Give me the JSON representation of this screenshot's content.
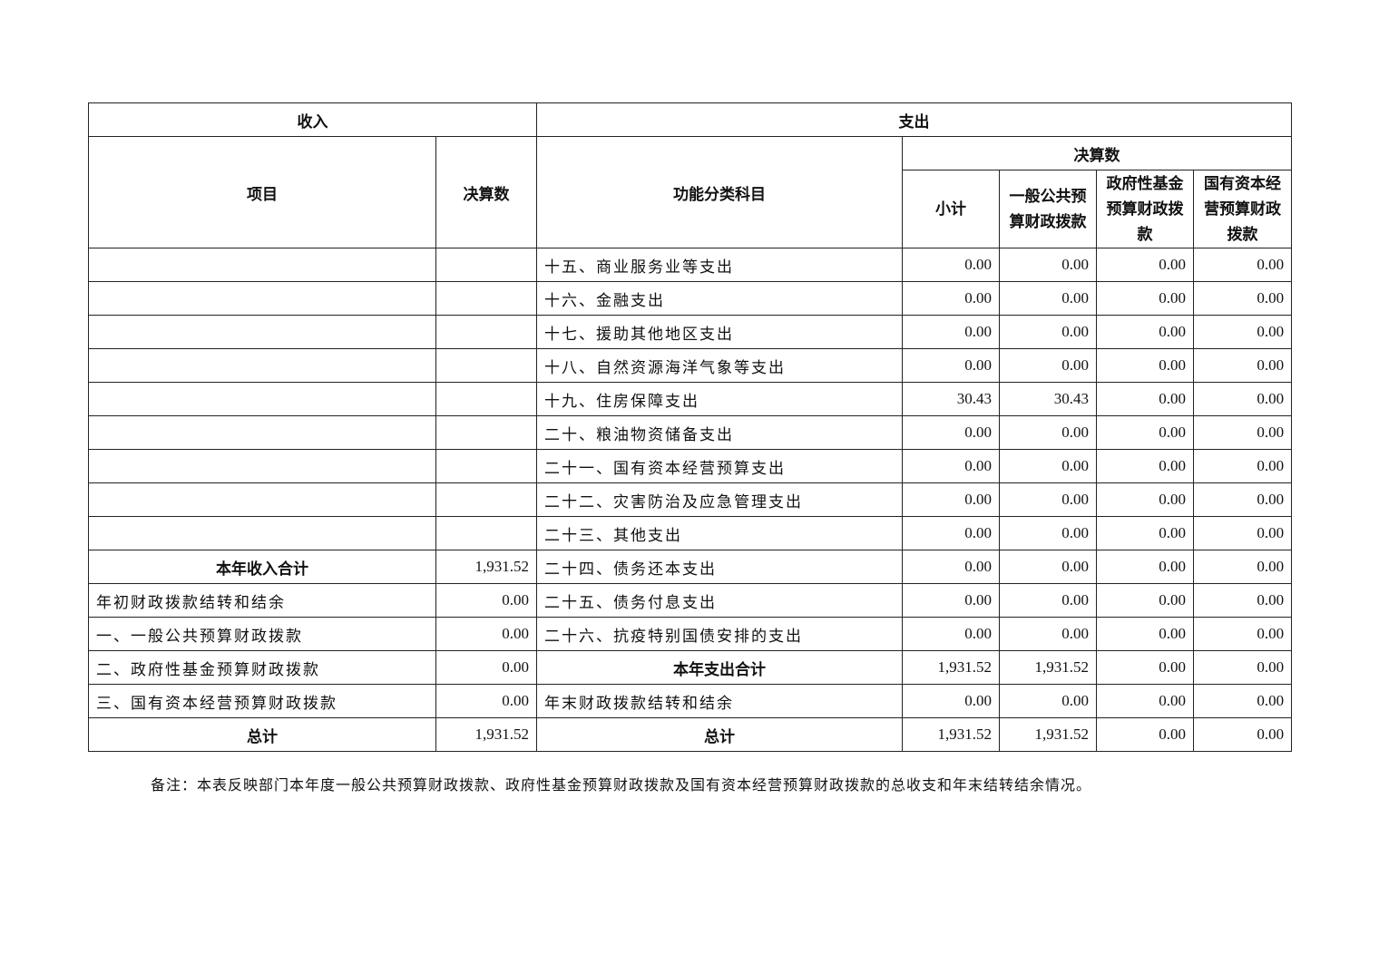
{
  "header": {
    "income": "收入",
    "expense": "支出",
    "item": "项目",
    "income_amount": "决算数",
    "function_category": "功能分类科目",
    "expense_amount": "决算数",
    "subtotal": "小计",
    "general_public": "一般公共预算财政拨款",
    "gov_fund": "政府性基金预算财政拨款",
    "state_capital": "国有资本经营预算财政拨款"
  },
  "rows": [
    {
      "in_item": "",
      "in_amt": "",
      "out_item": "十五、商业服务业等支出",
      "v": [
        "0.00",
        "0.00",
        "0.00",
        "0.00"
      ]
    },
    {
      "in_item": "",
      "in_amt": "",
      "out_item": "十六、金融支出",
      "v": [
        "0.00",
        "0.00",
        "0.00",
        "0.00"
      ]
    },
    {
      "in_item": "",
      "in_amt": "",
      "out_item": "十七、援助其他地区支出",
      "v": [
        "0.00",
        "0.00",
        "0.00",
        "0.00"
      ]
    },
    {
      "in_item": "",
      "in_amt": "",
      "out_item": "十八、自然资源海洋气象等支出",
      "v": [
        "0.00",
        "0.00",
        "0.00",
        "0.00"
      ]
    },
    {
      "in_item": "",
      "in_amt": "",
      "out_item": "十九、住房保障支出",
      "v": [
        "30.43",
        "30.43",
        "0.00",
        "0.00"
      ]
    },
    {
      "in_item": "",
      "in_amt": "",
      "out_item": "二十、粮油物资储备支出",
      "v": [
        "0.00",
        "0.00",
        "0.00",
        "0.00"
      ]
    },
    {
      "in_item": "",
      "in_amt": "",
      "out_item": "二十一、国有资本经营预算支出",
      "v": [
        "0.00",
        "0.00",
        "0.00",
        "0.00"
      ]
    },
    {
      "in_item": "",
      "in_amt": "",
      "out_item": "二十二、灾害防治及应急管理支出",
      "v": [
        "0.00",
        "0.00",
        "0.00",
        "0.00"
      ]
    },
    {
      "in_item": "",
      "in_amt": "",
      "out_item": "二十三、其他支出",
      "v": [
        "0.00",
        "0.00",
        "0.00",
        "0.00"
      ]
    },
    {
      "in_item": "本年收入合计",
      "in_bold": true,
      "in_amt": "1,931.52",
      "out_item": "二十四、债务还本支出",
      "v": [
        "0.00",
        "0.00",
        "0.00",
        "0.00"
      ]
    },
    {
      "in_item": "年初财政拨款结转和结余",
      "in_amt": "0.00",
      "out_item": "二十五、债务付息支出",
      "v": [
        "0.00",
        "0.00",
        "0.00",
        "0.00"
      ]
    },
    {
      "in_item": "一、一般公共预算财政拨款",
      "in_amt": "0.00",
      "out_item": "二十六、抗疫特别国债安排的支出",
      "v": [
        "0.00",
        "0.00",
        "0.00",
        "0.00"
      ]
    },
    {
      "in_item": "二、政府性基金预算财政拨款",
      "in_amt": "0.00",
      "out_item": "本年支出合计",
      "out_bold": true,
      "v": [
        "1,931.52",
        "1,931.52",
        "0.00",
        "0.00"
      ]
    },
    {
      "in_item": "三、国有资本经营预算财政拨款",
      "in_amt": "0.00",
      "out_item": "年末财政拨款结转和结余",
      "v": [
        "0.00",
        "0.00",
        "0.00",
        "0.00"
      ]
    },
    {
      "in_item": "总计",
      "in_bold": true,
      "in_amt": "1,931.52",
      "out_item": "总计",
      "out_bold": true,
      "v": [
        "1,931.52",
        "1,931.52",
        "0.00",
        "0.00"
      ]
    }
  ],
  "note": "备注：本表反映部门本年度一般公共预算财政拨款、政府性基金预算财政拨款及国有资本经营预算财政拨款的总收支和年末结转结余情况。"
}
